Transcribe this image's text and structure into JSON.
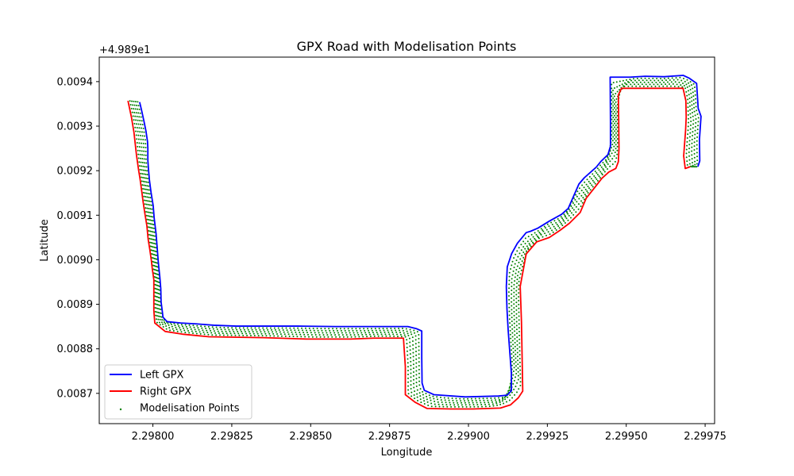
{
  "chart_data": {
    "type": "line",
    "title": "GPX Road with Modelisation Points",
    "xlabel": "Longitude",
    "ylabel": "Latitude",
    "y_offset_label": "+4.989e1",
    "xlim": [
      2.29783,
      2.29978
    ],
    "ylim": [
      0.008632,
      0.009455
    ],
    "x_ticks": [
      {
        "value": 2.298,
        "label": "2.29800"
      },
      {
        "value": 2.29825,
        "label": "2.29825"
      },
      {
        "value": 2.2985,
        "label": "2.29850"
      },
      {
        "value": 2.29875,
        "label": "2.29875"
      },
      {
        "value": 2.299,
        "label": "2.29900"
      },
      {
        "value": 2.29925,
        "label": "2.29925"
      },
      {
        "value": 2.2995,
        "label": "2.29950"
      },
      {
        "value": 2.29975,
        "label": "2.29975"
      }
    ],
    "y_ticks": [
      {
        "value": 0.0087,
        "label": "0.0087"
      },
      {
        "value": 0.0088,
        "label": "0.0088"
      },
      {
        "value": 0.0089,
        "label": "0.0089"
      },
      {
        "value": 0.009,
        "label": "0.0090"
      },
      {
        "value": 0.0091,
        "label": "0.0091"
      },
      {
        "value": 0.0092,
        "label": "0.0092"
      },
      {
        "value": 0.0093,
        "label": "0.0093"
      },
      {
        "value": 0.0094,
        "label": "0.0094"
      }
    ],
    "grid": false,
    "legend_position": "lower-left",
    "series": [
      {
        "name": "Left GPX",
        "kind": "line",
        "color": "#0000ff",
        "points": [
          [
            2.297958,
            0.009354
          ],
          [
            2.297964,
            0.009336
          ],
          [
            2.297972,
            0.00931
          ],
          [
            2.297978,
            0.009289
          ],
          [
            2.297983,
            0.009265
          ],
          [
            2.297984,
            0.00925
          ],
          [
            2.297984,
            0.009224
          ],
          [
            2.297986,
            0.009203
          ],
          [
            2.297989,
            0.009179
          ],
          [
            2.297994,
            0.009152
          ],
          [
            2.298001,
            0.009121
          ],
          [
            2.298004,
            0.009094
          ],
          [
            2.29801,
            0.009059
          ],
          [
            2.298013,
            0.009032
          ],
          [
            2.298017,
            0.008996
          ],
          [
            2.298019,
            0.008981
          ],
          [
            2.298022,
            0.008961
          ],
          [
            2.298025,
            0.008935
          ],
          [
            2.298026,
            0.008905
          ],
          [
            2.29803,
            0.008883
          ],
          [
            2.298032,
            0.008871
          ],
          [
            2.298045,
            0.008861
          ],
          [
            2.298088,
            0.008858
          ],
          [
            2.298138,
            0.008856
          ],
          [
            2.298192,
            0.008853
          ],
          [
            2.298264,
            0.008851
          ],
          [
            2.298348,
            0.008851
          ],
          [
            2.29846,
            0.008851
          ],
          [
            2.298579,
            0.00885
          ],
          [
            2.298808,
            0.00885
          ],
          [
            2.298836,
            0.008845
          ],
          [
            2.298852,
            0.00884
          ],
          [
            2.298852,
            0.00878
          ],
          [
            2.298853,
            0.008723
          ],
          [
            2.29886,
            0.008707
          ],
          [
            2.298891,
            0.008697
          ],
          [
            2.29899,
            0.008692
          ],
          [
            2.299095,
            0.008694
          ],
          [
            2.299123,
            0.008696
          ],
          [
            2.299136,
            0.008706
          ],
          [
            2.299136,
            0.008745
          ],
          [
            2.299126,
            0.00884
          ],
          [
            2.299122,
            0.00889
          ],
          [
            2.29912,
            0.00894
          ],
          [
            2.299123,
            0.008984
          ],
          [
            2.299137,
            0.009014
          ],
          [
            2.299155,
            0.009037
          ],
          [
            2.299183,
            0.009061
          ],
          [
            2.299197,
            0.009064
          ],
          [
            2.29922,
            0.009071
          ],
          [
            2.299257,
            0.009087
          ],
          [
            2.299295,
            0.009102
          ],
          [
            2.299316,
            0.009115
          ],
          [
            2.29935,
            0.00917
          ],
          [
            2.299367,
            0.009184
          ],
          [
            2.299405,
            0.009208
          ],
          [
            2.29942,
            0.009221
          ],
          [
            2.299442,
            0.009236
          ],
          [
            2.29945,
            0.009255
          ],
          [
            2.29945,
            0.00931
          ],
          [
            2.299449,
            0.00941
          ],
          [
            2.299512,
            0.00941
          ],
          [
            2.29956,
            0.009412
          ],
          [
            2.29962,
            0.009411
          ],
          [
            2.299681,
            0.009414
          ],
          [
            2.299699,
            0.009408
          ],
          [
            2.299723,
            0.009396
          ],
          [
            2.299728,
            0.00934
          ],
          [
            2.299737,
            0.009322
          ],
          [
            2.299732,
            0.00927
          ],
          [
            2.299733,
            0.009222
          ],
          [
            2.299727,
            0.009209
          ]
        ]
      },
      {
        "name": "Right GPX",
        "kind": "line",
        "color": "#ff0000",
        "points": [
          [
            2.297921,
            0.009357
          ],
          [
            2.297932,
            0.00932
          ],
          [
            2.29794,
            0.009286
          ],
          [
            2.297948,
            0.009235
          ],
          [
            2.297955,
            0.0092
          ],
          [
            2.297959,
            0.009183
          ],
          [
            2.297964,
            0.009157
          ],
          [
            2.297969,
            0.00913
          ],
          [
            2.297975,
            0.009102
          ],
          [
            2.297981,
            0.009076
          ],
          [
            2.297985,
            0.009046
          ],
          [
            2.29799,
            0.009024
          ],
          [
            2.297995,
            0.008999
          ],
          [
            2.297998,
            0.00898
          ],
          [
            2.298003,
            0.008955
          ],
          [
            2.298003,
            0.00891
          ],
          [
            2.298003,
            0.008886
          ],
          [
            2.298006,
            0.008858
          ],
          [
            2.298039,
            0.008839
          ],
          [
            2.298093,
            0.008833
          ],
          [
            2.298178,
            0.008827
          ],
          [
            2.29835,
            0.008825
          ],
          [
            2.298486,
            0.008822
          ],
          [
            2.298627,
            0.008822
          ],
          [
            2.2987,
            0.008824
          ],
          [
            2.298794,
            0.008824
          ],
          [
            2.2988,
            0.00876
          ],
          [
            2.2988,
            0.008697
          ],
          [
            2.298831,
            0.00868
          ],
          [
            2.298869,
            0.008666
          ],
          [
            2.298944,
            0.008665
          ],
          [
            2.299015,
            0.008665
          ],
          [
            2.299101,
            0.008667
          ],
          [
            2.299133,
            0.008674
          ],
          [
            2.299158,
            0.00869
          ],
          [
            2.299172,
            0.008705
          ],
          [
            2.299168,
            0.00886
          ],
          [
            2.299164,
            0.00894
          ],
          [
            2.299183,
            0.009013
          ],
          [
            2.299216,
            0.00904
          ],
          [
            2.299256,
            0.00905
          ],
          [
            2.29929,
            0.009066
          ],
          [
            2.29932,
            0.009082
          ],
          [
            2.299354,
            0.009106
          ],
          [
            2.299373,
            0.009138
          ],
          [
            2.2994,
            0.009162
          ],
          [
            2.299423,
            0.009183
          ],
          [
            2.299445,
            0.009197
          ],
          [
            2.299467,
            0.009205
          ],
          [
            2.299475,
            0.00922
          ],
          [
            2.299477,
            0.00925
          ],
          [
            2.299476,
            0.00932
          ],
          [
            2.299475,
            0.00937
          ],
          [
            2.299485,
            0.009385
          ],
          [
            2.29968,
            0.009385
          ],
          [
            2.299689,
            0.009357
          ],
          [
            2.29969,
            0.00932
          ],
          [
            2.299688,
            0.00929
          ],
          [
            2.299682,
            0.009233
          ],
          [
            2.299687,
            0.009205
          ],
          [
            2.299703,
            0.009209
          ]
        ]
      },
      {
        "name": "Modelisation Points",
        "kind": "scatter",
        "color": "#008000"
      }
    ]
  }
}
